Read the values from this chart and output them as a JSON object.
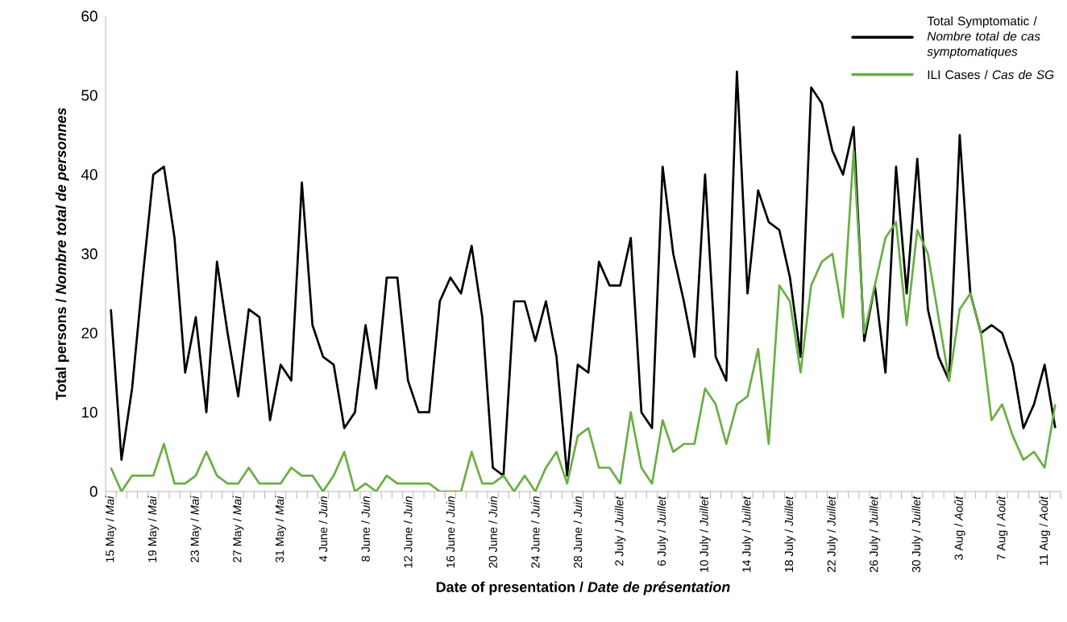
{
  "chart_data": {
    "type": "line",
    "xlabel": "Date of presentation / *Date de présentation*",
    "ylabel": "Total persons / *Nombre total de personnes*",
    "categories": [
      "15 May / *Mai*",
      null,
      null,
      null,
      "19 May / *Mai*",
      null,
      null,
      null,
      "23 May / *Mai*",
      null,
      null,
      null,
      "27 May / *Mai*",
      null,
      null,
      null,
      "31 May / *Mai*",
      null,
      null,
      null,
      "4 June / *Juin*",
      null,
      null,
      null,
      "8 June / *Juin*",
      null,
      null,
      null,
      "12 June / *Juin*",
      null,
      null,
      null,
      "16 June / *Juin*",
      null,
      null,
      null,
      "20 June / *Juin*",
      null,
      null,
      null,
      "24 June / *Juin*",
      null,
      null,
      null,
      "28 June / *Juin*",
      null,
      null,
      null,
      "2 July / *Juillet*",
      null,
      null,
      null,
      "6 July / *Juillet*",
      null,
      null,
      null,
      "10 July / *Juillet*",
      null,
      null,
      null,
      "14 July / *Juillet*",
      null,
      null,
      null,
      "18 July / *Juillet*",
      null,
      null,
      null,
      "22 July / *Juillet*",
      null,
      null,
      null,
      "26 July / *Juillet*",
      null,
      null,
      null,
      "30 July / *Juillet*",
      null,
      null,
      null,
      "3 Aug / *Août*",
      null,
      null,
      null,
      "7 Aug / *Août*",
      null,
      null,
      null,
      "11 Aug / *Août*",
      null
    ],
    "series": [
      {
        "name": "Total Symptomatic / *Nombre total de cas symptomatiques*",
        "color": "#000000",
        "values": [
          23,
          4,
          13,
          27,
          40,
          41,
          32,
          15,
          22,
          10,
          29,
          20,
          12,
          23,
          22,
          9,
          16,
          14,
          39,
          21,
          17,
          16,
          8,
          10,
          21,
          13,
          27,
          27,
          14,
          10,
          10,
          24,
          27,
          25,
          31,
          22,
          3,
          2,
          24,
          24,
          19,
          24,
          17,
          2,
          16,
          15,
          29,
          26,
          26,
          32,
          10,
          8,
          41,
          30,
          24,
          17,
          40,
          17,
          14,
          53,
          25,
          38,
          34,
          33,
          27,
          17,
          51,
          49,
          43,
          40,
          46,
          19,
          26,
          15,
          41,
          25,
          42,
          23,
          17,
          14,
          45,
          25,
          20,
          21,
          20,
          16,
          8,
          11,
          16,
          8
        ]
      },
      {
        "name": "ILI Cases / *Cas de SG*",
        "color": "#6aae45",
        "values": [
          3,
          0,
          2,
          2,
          2,
          6,
          1,
          1,
          2,
          5,
          2,
          1,
          1,
          3,
          1,
          1,
          1,
          3,
          2,
          2,
          0,
          2,
          5,
          0,
          1,
          0,
          2,
          1,
          1,
          1,
          1,
          0,
          0,
          0,
          5,
          1,
          1,
          2,
          0,
          2,
          0,
          3,
          5,
          1,
          7,
          8,
          3,
          3,
          1,
          10,
          3,
          1,
          9,
          5,
          6,
          6,
          13,
          11,
          6,
          11,
          12,
          18,
          6,
          26,
          24,
          15,
          26,
          29,
          30,
          22,
          43,
          20,
          26,
          32,
          34,
          21,
          33,
          30,
          22,
          14,
          23,
          25,
          20,
          9,
          11,
          7,
          4,
          5,
          3,
          11
        ]
      }
    ],
    "ylim": [
      0,
      60
    ],
    "yticks": [
      0,
      10,
      20,
      30,
      40,
      50,
      60
    ],
    "legend": "top right"
  }
}
